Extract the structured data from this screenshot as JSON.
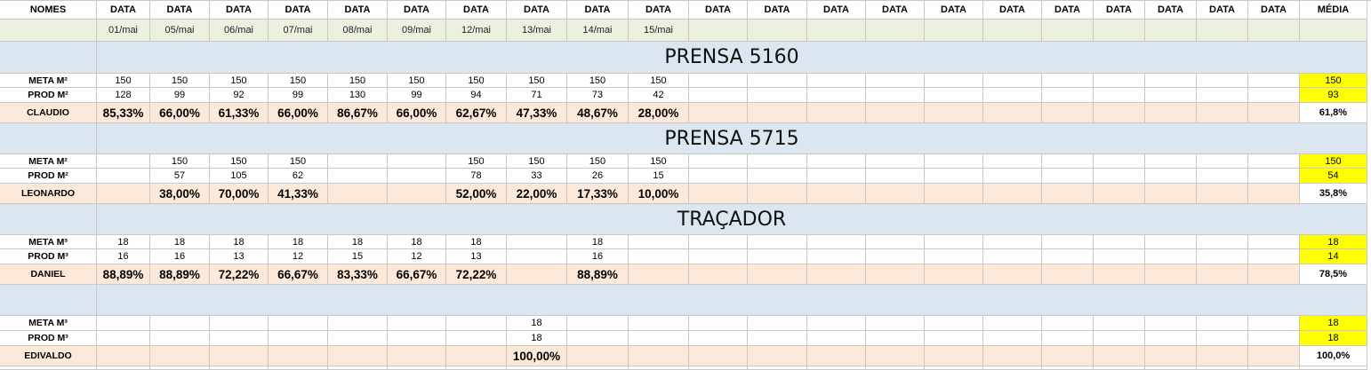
{
  "header": {
    "names_label": "NOMES",
    "data_label": "DATA",
    "average_label": "MÉDIA",
    "dates": [
      "01/mai",
      "05/mai",
      "06/mai",
      "07/mai",
      "08/mai",
      "09/mai",
      "12/mai",
      "13/mai",
      "14/mai",
      "15/mai",
      "",
      "",
      "",
      "",
      "",
      "",
      "",
      "",
      "",
      "",
      ""
    ]
  },
  "sections": [
    {
      "title": "PRENSA 5160",
      "meta_label": "META M²",
      "prod_label": "PROD M²",
      "person": "CLAUDIO",
      "meta": [
        "150",
        "150",
        "150",
        "150",
        "150",
        "150",
        "150",
        "150",
        "150",
        "150"
      ],
      "prod": [
        "128",
        "99",
        "92",
        "99",
        "130",
        "99",
        "94",
        "71",
        "73",
        "42"
      ],
      "pct": [
        "85,33%",
        "66,00%",
        "61,33%",
        "66,00%",
        "86,67%",
        "66,00%",
        "62,67%",
        "47,33%",
        "48,67%",
        "28,00%"
      ],
      "avg_meta": "150",
      "avg_prod": "93",
      "avg_pct": "61,8%"
    },
    {
      "title": "PRENSA 5715",
      "meta_label": "META M²",
      "prod_label": "PROD M²",
      "person": "LEONARDO",
      "meta": [
        "",
        "150",
        "150",
        "150",
        "",
        "",
        "150",
        "150",
        "150",
        "150"
      ],
      "prod": [
        "",
        "57",
        "105",
        "62",
        "",
        "",
        "78",
        "33",
        "26",
        "15"
      ],
      "pct": [
        "",
        "38,00%",
        "70,00%",
        "41,33%",
        "",
        "",
        "52,00%",
        "22,00%",
        "17,33%",
        "10,00%"
      ],
      "avg_meta": "150",
      "avg_prod": "54",
      "avg_pct": "35,8%"
    },
    {
      "title": "TRAÇADOR",
      "meta_label": "META M³",
      "prod_label": "PROD M³",
      "person": "DANIEL",
      "meta": [
        "18",
        "18",
        "18",
        "18",
        "18",
        "18",
        "18",
        "",
        "18",
        ""
      ],
      "prod": [
        "16",
        "16",
        "13",
        "12",
        "15",
        "12",
        "13",
        "",
        "16",
        ""
      ],
      "pct": [
        "88,89%",
        "88,89%",
        "72,22%",
        "66,67%",
        "83,33%",
        "66,67%",
        "72,22%",
        "",
        "88,89%",
        ""
      ],
      "avg_meta": "18",
      "avg_prod": "14",
      "avg_pct": "78,5%"
    },
    {
      "title": "",
      "meta_label": "META M³",
      "prod_label": "PROD M³",
      "person": "EDIVALDO",
      "meta": [
        "",
        "",
        "",
        "",
        "",
        "",
        "",
        "18",
        "",
        ""
      ],
      "prod": [
        "",
        "",
        "",
        "",
        "",
        "",
        "",
        "18",
        "",
        ""
      ],
      "pct": [
        "",
        "",
        "",
        "",
        "",
        "",
        "",
        "100,00%",
        "",
        ""
      ],
      "avg_meta": "18",
      "avg_prod": "18",
      "avg_pct": "100,0%"
    }
  ]
}
